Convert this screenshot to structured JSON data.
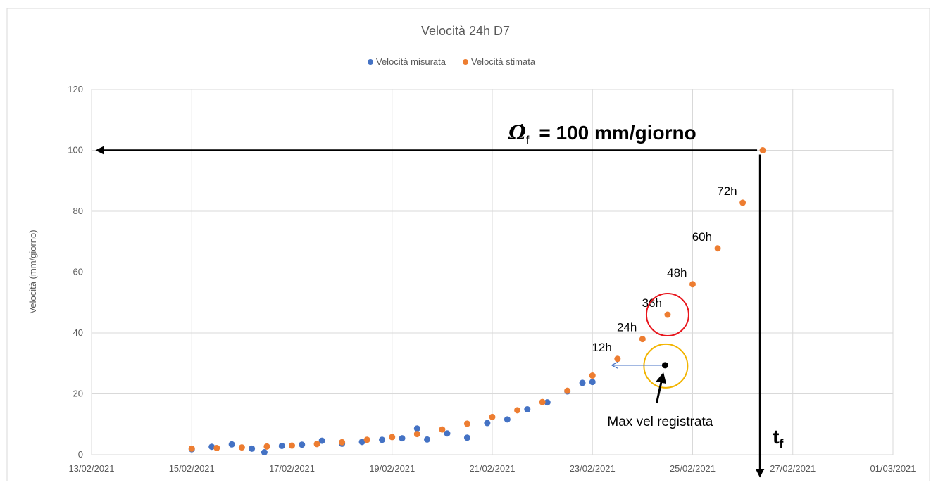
{
  "chart_data": {
    "type": "scatter",
    "title": "Velocità 24h D7",
    "y_label": "Velocità (mm/giorno)",
    "xlim": [
      44240,
      44256
    ],
    "xticks": [
      {
        "value": 44240,
        "label": "13/02/2021"
      },
      {
        "value": 44242,
        "label": "15/02/2021"
      },
      {
        "value": 44244,
        "label": "17/02/2021"
      },
      {
        "value": 44246,
        "label": "19/02/2021"
      },
      {
        "value": 44248,
        "label": "21/02/2021"
      },
      {
        "value": 44250,
        "label": "23/02/2021"
      },
      {
        "value": 44252,
        "label": "25/02/2021"
      },
      {
        "value": 44254,
        "label": "27/02/2021"
      },
      {
        "value": 44256,
        "label": "01/03/2021"
      }
    ],
    "ylim": [
      0,
      120
    ],
    "yticks": [
      0,
      20,
      40,
      60,
      80,
      100,
      120
    ],
    "grid": true,
    "series": [
      {
        "name": "Velocità misurata",
        "color": "#4472c4",
        "x": [
          44242.0,
          44242.4,
          44242.8,
          44243.2,
          44243.45,
          44243.8,
          44244.2,
          44244.6,
          44245.0,
          44245.4,
          44245.8,
          44246.2,
          44246.5,
          44246.7,
          44247.1,
          44247.5,
          44247.9,
          44248.3,
          44248.7,
          44249.1,
          44249.5,
          44249.8,
          44250.0
        ],
        "values": [
          1.8,
          2.6,
          3.4,
          2.0,
          0.8,
          2.9,
          3.3,
          4.6,
          3.6,
          4.2,
          4.9,
          5.4,
          8.6,
          5.0,
          7.0,
          5.6,
          10.4,
          11.6,
          14.9,
          17.2,
          20.8,
          23.6,
          23.9
        ]
      },
      {
        "name": "Velocità stimata",
        "color": "#ed7d31",
        "x": [
          44242.0,
          44242.5,
          44243.0,
          44243.5,
          44244.0,
          44244.5,
          44245.0,
          44245.5,
          44246.0,
          44246.5,
          44247.0,
          44247.5,
          44248.0,
          44248.5,
          44249.0,
          44249.5,
          44250.0,
          44250.5,
          44251.0,
          44251.5,
          44252.0,
          44252.5,
          44253.0,
          44253.4
        ],
        "values": [
          2.0,
          2.2,
          2.4,
          2.7,
          3.0,
          3.5,
          4.1,
          4.9,
          5.8,
          6.8,
          8.3,
          10.2,
          12.4,
          14.6,
          17.3,
          21.0,
          26.0,
          31.5,
          38.0,
          46.0,
          56.0,
          67.8,
          82.8,
          100
        ],
        "point_labels": [
          null,
          null,
          null,
          null,
          null,
          null,
          null,
          null,
          null,
          null,
          null,
          null,
          null,
          null,
          null,
          null,
          null,
          "12h",
          "24h",
          "36h",
          "48h",
          "60h",
          "72h",
          null
        ]
      }
    ],
    "max_point": {
      "label": "Max vel registrata",
      "x": 44251.45,
      "y": 29.4,
      "color": "#000000"
    },
    "failure_label": {
      "symbol": "Ω̇",
      "subscript": "f",
      "text": "= 100 mm/giorno"
    },
    "time_label": {
      "symbol": "t",
      "subscript": "f"
    }
  }
}
